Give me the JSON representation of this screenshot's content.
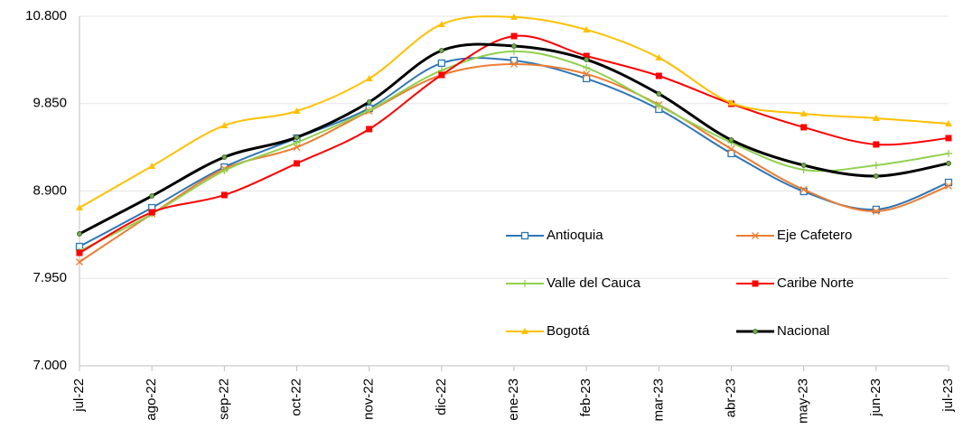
{
  "chart_data": {
    "type": "line",
    "categories": [
      "jul-22",
      "ago-22",
      "sep-22",
      "oct-22",
      "nov-22",
      "dic-22",
      "ene-23",
      "feb-23",
      "mar-23",
      "abr-23",
      "may-23",
      "jun-23",
      "jul-23"
    ],
    "ylim": [
      7000,
      10800
    ],
    "yticks": [
      {
        "value": 7000,
        "label": "7.000"
      },
      {
        "value": 7950,
        "label": "7.950"
      },
      {
        "value": 8900,
        "label": "8.900"
      },
      {
        "value": 9850,
        "label": "9.850"
      },
      {
        "value": 10800,
        "label": "10.800"
      }
    ],
    "grid": true,
    "series": [
      {
        "name": "Antioquia",
        "color": "#2e75b6",
        "marker": "square-open",
        "line_width": 2,
        "values": [
          8296,
          8718,
          9160,
          9475,
          9799,
          10290,
          10319,
          10123,
          9789,
          9308,
          8895,
          8699,
          8993
        ]
      },
      {
        "name": "Eje Cafetero",
        "color": "#ed7d31",
        "marker": "x",
        "line_width": 2,
        "values": [
          8129,
          8650,
          9141,
          9376,
          9769,
          10162,
          10280,
          10172,
          9838,
          9357,
          8915,
          8679,
          8954
        ]
      },
      {
        "name": "Valle del Cauca",
        "color": "#92d050",
        "marker": "plus",
        "line_width": 2,
        "values": [
          8247,
          8650,
          9121,
          9426,
          9779,
          10211,
          10418,
          10241,
          9828,
          9426,
          9131,
          9180,
          9308
        ]
      },
      {
        "name": "Caribe Norte",
        "color": "#ff0000",
        "marker": "square",
        "line_width": 2,
        "values": [
          8227,
          8669,
          8856,
          9200,
          9573,
          10162,
          10584,
          10368,
          10152,
          9848,
          9593,
          9406,
          9475
        ]
      },
      {
        "name": "Bogotá",
        "color": "#ffc000",
        "marker": "triangle",
        "line_width": 2,
        "values": [
          8718,
          9170,
          9612,
          9769,
          10123,
          10712,
          10791,
          10653,
          10349,
          9858,
          9740,
          9691,
          9632
        ]
      },
      {
        "name": "Nacional",
        "color": "#000000",
        "marker": "circle",
        "line_width": 3,
        "values": [
          8434,
          8846,
          9268,
          9484,
          9867,
          10427,
          10476,
          10329,
          9956,
          9455,
          9180,
          9062,
          9200
        ]
      }
    ]
  }
}
